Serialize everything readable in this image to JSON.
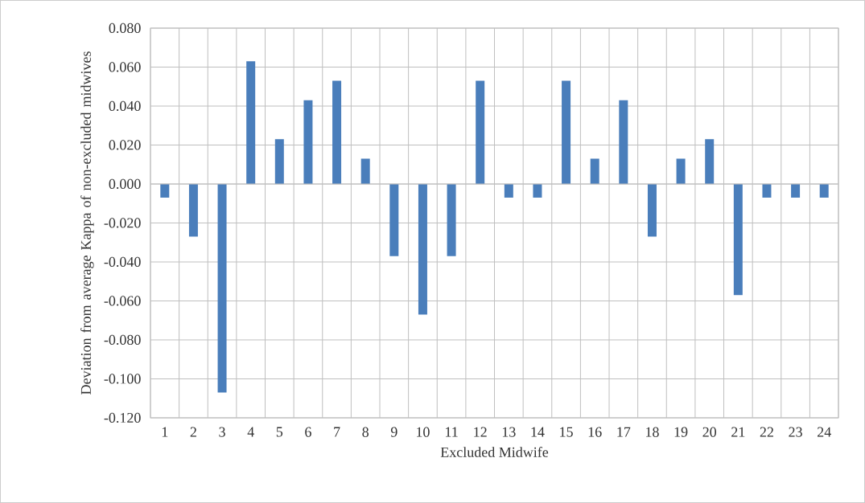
{
  "chart_data": {
    "type": "bar",
    "xlabel": "Excluded Midwife",
    "ylabel": "Deviation from average Kappa of non-excluded midwives",
    "categories": [
      "1",
      "2",
      "3",
      "4",
      "5",
      "6",
      "7",
      "8",
      "9",
      "10",
      "11",
      "12",
      "13",
      "14",
      "15",
      "16",
      "17",
      "18",
      "19",
      "20",
      "21",
      "22",
      "23",
      "24"
    ],
    "values": [
      -0.007,
      -0.027,
      -0.107,
      0.063,
      0.023,
      0.043,
      0.053,
      0.013,
      -0.037,
      -0.067,
      -0.037,
      0.053,
      -0.007,
      -0.007,
      0.053,
      0.013,
      0.043,
      -0.027,
      0.013,
      0.023,
      -0.057,
      -0.007,
      -0.007,
      -0.007
    ],
    "color": "#4a7ebb",
    "ylim": [
      -0.12,
      0.08
    ],
    "yticks": [
      {
        "value": -0.12,
        "label": "-0.120"
      },
      {
        "value": -0.1,
        "label": "-0.100"
      },
      {
        "value": -0.08,
        "label": "-0.080"
      },
      {
        "value": -0.06,
        "label": "-0.060"
      },
      {
        "value": -0.04,
        "label": "-0.040"
      },
      {
        "value": -0.02,
        "label": "-0.020"
      },
      {
        "value": 0,
        "label": "0.000"
      },
      {
        "value": 0.02,
        "label": "0.020"
      },
      {
        "value": 0.04,
        "label": "0.040"
      },
      {
        "value": 0.06,
        "label": "0.060"
      },
      {
        "value": 0.08,
        "label": "0.080"
      }
    ],
    "grid": true
  }
}
